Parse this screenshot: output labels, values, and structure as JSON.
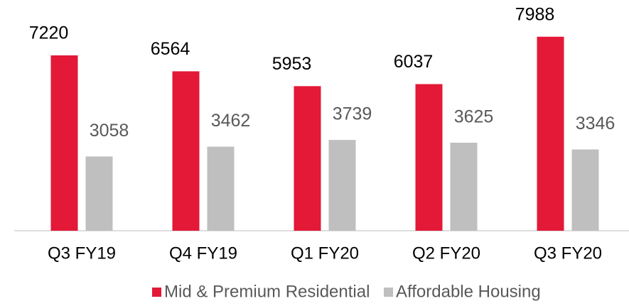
{
  "chart_data": {
    "type": "bar",
    "categories": [
      "Q3 FY19",
      "Q4 FY19",
      "Q1 FY20",
      "Q2 FY20",
      "Q3 FY20"
    ],
    "series": [
      {
        "name": "Mid & Premium Residential",
        "color": "#e31937",
        "values": [
          7220,
          6564,
          5953,
          6037,
          7988
        ]
      },
      {
        "name": "Affordable Housing",
        "color": "#bfbfbf",
        "values": [
          3058,
          3462,
          3739,
          3625,
          3346
        ]
      }
    ],
    "ylim": [
      0,
      9500
    ]
  }
}
